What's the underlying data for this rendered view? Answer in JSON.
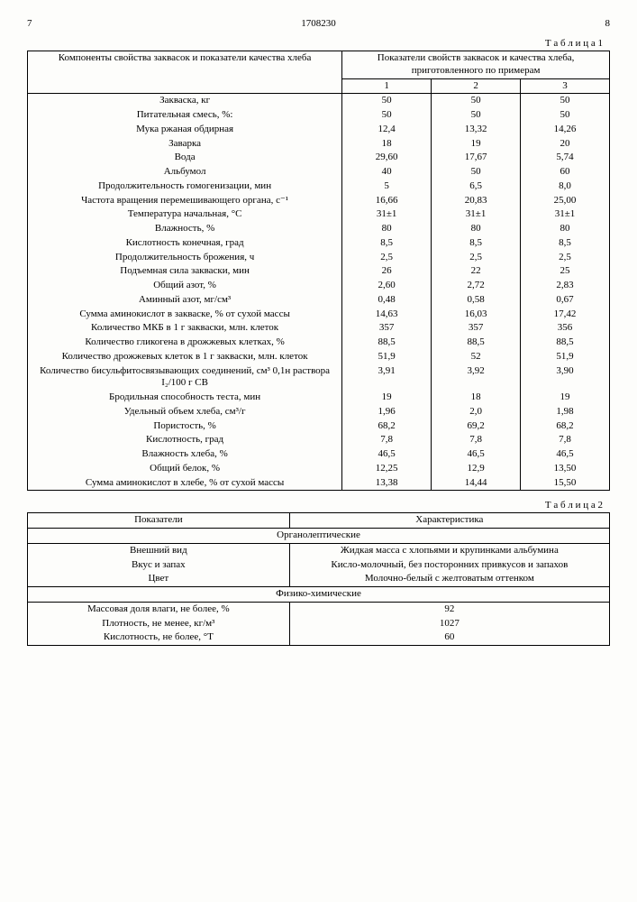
{
  "header": {
    "leftPage": "7",
    "docNumber": "1708230",
    "rightPage": "8"
  },
  "table1": {
    "caption": "Т а б л и ц а 1",
    "header_left": "Компоненты свойства заквасок и показатели качества хлеба",
    "header_right": "Показатели свойств заквасок и качества хлеба, приготовленного по примерам",
    "cols": [
      "1",
      "2",
      "3"
    ],
    "rows": [
      {
        "label": "Закваска, кг",
        "v": [
          "50",
          "50",
          "50"
        ]
      },
      {
        "label": "Питательная смесь, %:",
        "v": [
          "50",
          "50",
          "50"
        ]
      },
      {
        "label": "Мука ржаная обдирная",
        "v": [
          "12,4",
          "13,32",
          "14,26"
        ]
      },
      {
        "label": "Заварка",
        "v": [
          "18",
          "19",
          "20"
        ]
      },
      {
        "label": "Вода",
        "v": [
          "29,60",
          "17,67",
          "5,74"
        ]
      },
      {
        "label": "Альбумол",
        "v": [
          "40",
          "50",
          "60"
        ]
      },
      {
        "label": "Продолжительность гомогенизации, мин",
        "v": [
          "5",
          "6,5",
          "8,0"
        ]
      },
      {
        "label": "Частота вращения перемешивающего органа, с⁻¹",
        "v": [
          "16,66",
          "20,83",
          "25,00"
        ]
      },
      {
        "label": "Температура начальная, °С",
        "v": [
          "31±1",
          "31±1",
          "31±1"
        ]
      },
      {
        "label": "Влажность, %",
        "v": [
          "80",
          "80",
          "80"
        ]
      },
      {
        "label": "Кислотность конечная, град",
        "v": [
          "8,5",
          "8,5",
          "8,5"
        ]
      },
      {
        "label": "Продолжительность брожения, ч",
        "v": [
          "2,5",
          "2,5",
          "2,5"
        ]
      },
      {
        "label": "Подъемная сила закваски, мин",
        "v": [
          "26",
          "22",
          "25"
        ]
      },
      {
        "label": "Общий азот, %",
        "v": [
          "2,60",
          "2,72",
          "2,83"
        ]
      },
      {
        "label": "Аминный азот, мг/см³",
        "v": [
          "0,48",
          "0,58",
          "0,67"
        ]
      },
      {
        "label": "Сумма аминокислот в закваске, % от сухой массы",
        "v": [
          "14,63",
          "16,03",
          "17,42"
        ]
      },
      {
        "label": "Количество МКБ в 1 г закваски, млн. клеток",
        "v": [
          "357",
          "357",
          "356"
        ]
      },
      {
        "label": "Количество гликогена в дрожжевых клетках, %",
        "v": [
          "88,5",
          "88,5",
          "88,5"
        ]
      },
      {
        "label": "Количество дрожжевых клеток в 1 г закваски, млн. клеток",
        "v": [
          "51,9",
          "52",
          "51,9"
        ]
      },
      {
        "label": "Количество бисульфитосвязывающих соединений, см³ 0,1н раствора I₂/100 г СВ",
        "v": [
          "3,91",
          "3,92",
          "3,90"
        ]
      },
      {
        "label": "Бродильная способность теста, мин",
        "v": [
          "19",
          "18",
          "19"
        ]
      },
      {
        "label": "Удельный объем хлеба, см³/г",
        "v": [
          "1,96",
          "2,0",
          "1,98"
        ]
      },
      {
        "label": "Пористость, %",
        "v": [
          "68,2",
          "69,2",
          "68,2"
        ]
      },
      {
        "label": "Кислотность, град",
        "v": [
          "7,8",
          "7,8",
          "7,8"
        ]
      },
      {
        "label": "Влажность хлеба, %",
        "v": [
          "46,5",
          "46,5",
          "46,5"
        ]
      },
      {
        "label": "Общий белок, %",
        "v": [
          "12,25",
          "12,9",
          "13,50"
        ]
      },
      {
        "label": "Сумма аминокислот в хлебе, % от сухой массы",
        "v": [
          "13,38",
          "14,44",
          "15,50"
        ]
      }
    ]
  },
  "table2": {
    "caption": "Т а б л и ц а 2",
    "header_left": "Показатели",
    "header_right": "Характеристика",
    "section1": "Органолептические",
    "organoleptic": [
      {
        "label": "Внешний вид",
        "value": "Жидкая масса с хлопьями и крупинками альбумина"
      },
      {
        "label": "Вкус и запах",
        "value": "Кисло-молочный, без посторонних прив­кусов и запахов"
      },
      {
        "label": "Цвет",
        "value": "Молочно-белый с желтоватым оттен­ком"
      }
    ],
    "section2": "Физико-химические",
    "physchem": [
      {
        "label": "Массовая доля влаги, не более, %",
        "value": "92"
      },
      {
        "label": "Плотность, не менее, кг/м³",
        "value": "1027"
      },
      {
        "label": "Кислотность, не более, °Т",
        "value": "60"
      }
    ]
  }
}
